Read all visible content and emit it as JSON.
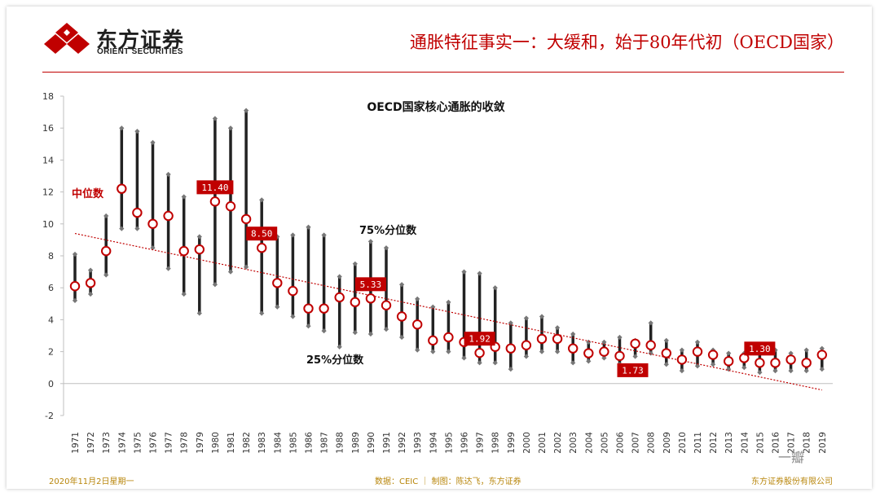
{
  "header": {
    "logo_cn": "东方证券",
    "logo_en": "ORIENT SECURITIES",
    "title": "通胀特征事实一：大缓和，始于80年代初（OECD国家）"
  },
  "footer": {
    "date": "2020年11月2日星期一",
    "source": "数据：CEIC ｜ 制图：陈达飞，东方证券",
    "company": "东方证券股份有限公司"
  },
  "watermark": "一瓣",
  "colors": {
    "accent": "#c00000",
    "bar": "#222222",
    "trend": "#c00000",
    "footer": "#b8860b"
  },
  "chart_data": {
    "type": "range",
    "title": "OECD国家核心通胀的收敛",
    "ylim": [
      -2,
      18
    ],
    "yticks": [
      -2,
      0,
      2,
      4,
      6,
      8,
      10,
      12,
      14,
      16,
      18
    ],
    "annotations": {
      "median": "中位数",
      "p75": "75%分位数",
      "p25": "25%分位数"
    },
    "categories": [
      "1971",
      "1972",
      "1973",
      "1974",
      "1975",
      "1976",
      "1977",
      "1978",
      "1979",
      "1980",
      "1981",
      "1982",
      "1983",
      "1984",
      "1985",
      "1986",
      "1987",
      "1988",
      "1989",
      "1990",
      "1991",
      "1992",
      "1993",
      "1994",
      "1995",
      "1996",
      "1997",
      "1998",
      "1999",
      "2000",
      "2001",
      "2002",
      "2003",
      "2004",
      "2005",
      "2006",
      "2007",
      "2008",
      "2009",
      "2010",
      "2011",
      "2012",
      "2013",
      "2014",
      "2015",
      "2016",
      "2017",
      "2018",
      "2019"
    ],
    "p25": [
      5.2,
      5.6,
      6.8,
      9.7,
      9.7,
      8.5,
      7.2,
      5.6,
      4.4,
      6.2,
      7.0,
      7.3,
      4.4,
      4.8,
      4.2,
      3.6,
      3.3,
      2.3,
      3.2,
      3.1,
      3.4,
      2.9,
      2.1,
      2.0,
      2.0,
      1.6,
      1.3,
      1.3,
      0.9,
      1.7,
      2.0,
      2.0,
      1.3,
      1.4,
      1.6,
      1.2,
      1.7,
      1.9,
      1.2,
      0.8,
      1.1,
      1.2,
      0.9,
      1.0,
      0.7,
      0.8,
      0.8,
      0.8,
      0.9
    ],
    "median": [
      6.1,
      6.3,
      8.3,
      12.2,
      10.7,
      10.0,
      10.5,
      8.3,
      8.4,
      11.4,
      11.1,
      10.3,
      8.5,
      6.3,
      5.8,
      4.7,
      4.7,
      5.4,
      5.1,
      5.33,
      4.9,
      4.2,
      3.7,
      2.7,
      2.9,
      2.6,
      1.92,
      2.3,
      2.2,
      2.4,
      2.8,
      2.8,
      2.2,
      1.9,
      2.0,
      1.73,
      2.5,
      2.4,
      1.9,
      1.5,
      2.0,
      1.8,
      1.4,
      1.6,
      1.3,
      1.3,
      1.5,
      1.3,
      1.8
    ],
    "p75": [
      8.1,
      7.1,
      10.5,
      16.0,
      15.8,
      15.1,
      13.1,
      11.7,
      9.2,
      16.6,
      16.0,
      17.1,
      11.5,
      9.2,
      9.3,
      9.8,
      9.3,
      6.7,
      7.5,
      8.9,
      8.5,
      6.2,
      5.3,
      4.8,
      5.1,
      7.0,
      6.9,
      6.0,
      3.8,
      4.1,
      4.2,
      3.5,
      3.1,
      2.6,
      2.6,
      2.9,
      2.7,
      3.8,
      2.7,
      2.1,
      2.6,
      2.1,
      1.9,
      1.9,
      2.1,
      2.1,
      1.9,
      2.1,
      2.2
    ],
    "labels": [
      {
        "year": "1980",
        "text": "11.40",
        "pos": "above"
      },
      {
        "year": "1983",
        "text": "8.50",
        "pos": "above"
      },
      {
        "year": "1990",
        "text": "5.33",
        "pos": "above"
      },
      {
        "year": "1997",
        "text": "1.92",
        "pos": "above"
      },
      {
        "year": "2006",
        "text": "1.73",
        "pos": "below"
      },
      {
        "year": "2015",
        "text": "1.30",
        "pos": "above"
      }
    ],
    "trend": {
      "start": 9.4,
      "end": -0.4
    }
  }
}
